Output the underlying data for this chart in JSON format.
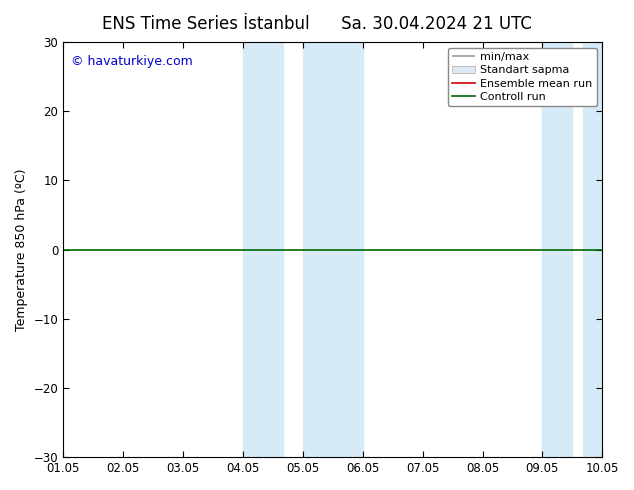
{
  "title": "ENS Time Series İstanbul",
  "title2": "Sa. 30.04.2024 21 UTC",
  "ylabel": "Temperature 850 hPa (ºC)",
  "ylim": [
    -30,
    30
  ],
  "yticks": [
    -30,
    -20,
    -10,
    0,
    10,
    20,
    30
  ],
  "xlim": [
    0,
    9
  ],
  "xtick_positions": [
    0,
    1,
    2,
    3,
    4,
    5,
    6,
    7,
    8,
    9
  ],
  "xtick_labels": [
    "01.05",
    "02.05",
    "03.05",
    "04.05",
    "05.05",
    "06.05",
    "07.05",
    "08.05",
    "09.05",
    "10.05"
  ],
  "shade_bands": [
    [
      3.0,
      3.5
    ],
    [
      4.0,
      5.0
    ],
    [
      8.0,
      8.5
    ],
    [
      8.5,
      9.0
    ]
  ],
  "shade_color": "#d6eaf8",
  "zero_line_color": "#006600",
  "watermark": "© havaturkiye.com",
  "watermark_color": "#0000cc",
  "legend_labels": [
    "min/max",
    "Standart sapma",
    "Ensemble mean run",
    "Controll run"
  ],
  "legend_line_colors": [
    "#999999",
    "#cccccc",
    "#cc0000",
    "#006600"
  ],
  "background_color": "#ffffff",
  "title_fontsize": 12,
  "axis_label_fontsize": 9,
  "tick_fontsize": 8.5,
  "legend_fontsize": 8
}
